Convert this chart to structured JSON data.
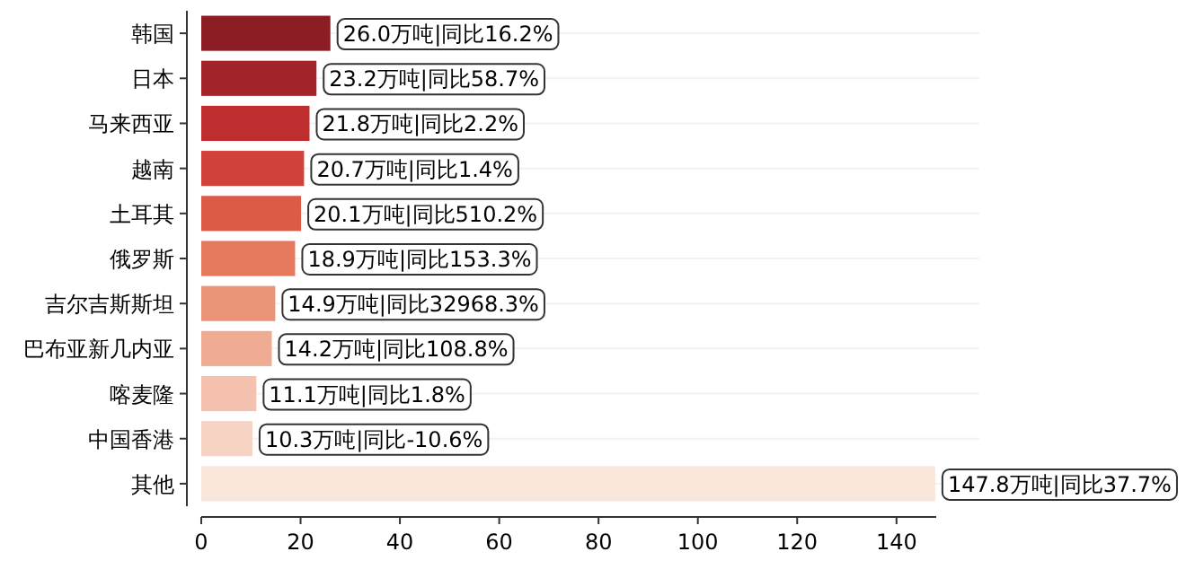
{
  "chart_data": {
    "type": "bar",
    "orientation": "horizontal",
    "categories": [
      "韩国",
      "日本",
      "马来西亚",
      "越南",
      "土耳其",
      "俄罗斯",
      "吉尔吉斯斯坦",
      "巴布亚新几内亚",
      "喀麦隆",
      "中国香港",
      "其他"
    ],
    "values": [
      26.0,
      23.2,
      21.8,
      20.7,
      20.1,
      18.9,
      14.9,
      14.2,
      11.1,
      10.3,
      147.8
    ],
    "colors": [
      "#8c1d25",
      "#a3242b",
      "#be2e2f",
      "#d0423a",
      "#dc5a48",
      "#e57a5f",
      "#eb9478",
      "#f0ab93",
      "#f4c2ae",
      "#f7d3c4",
      "#fbe6dc"
    ],
    "value_labels": [
      "26.0万吨|同比16.2%",
      "23.2万吨|同比58.7%",
      "21.8万吨|同比2.2%",
      "20.7万吨|同比1.4%",
      "20.1万吨|同比510.2%",
      "18.9万吨|同比153.3%",
      "14.9万吨|同比32968.3%",
      "14.2万吨|同比108.8%",
      "11.1万吨|同比1.8%",
      "10.3万吨|同比-10.6%",
      "147.8万吨|同比37.7%"
    ],
    "xlim": [
      0,
      148
    ],
    "xticks": [
      0,
      20,
      40,
      60,
      80,
      100,
      120,
      140
    ],
    "grid": "y"
  }
}
